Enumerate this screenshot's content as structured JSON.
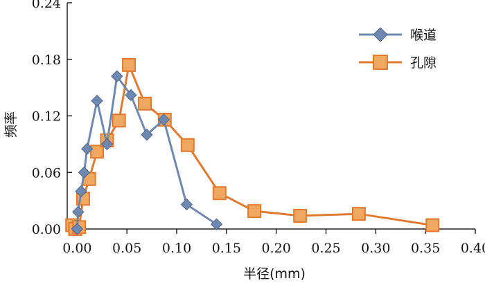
{
  "chart_data": {
    "type": "line",
    "xlabel": "半径(mm)",
    "ylabel": "频率",
    "xlim": [
      -0.01,
      0.4
    ],
    "ylim": [
      0.0,
      0.24
    ],
    "x_ticks": [
      "0.00",
      "0.05",
      "0.10",
      "0.15",
      "0.20",
      "0.25",
      "0.30",
      "0.35",
      "0.40"
    ],
    "y_ticks": [
      "0.00",
      "0.06",
      "0.12",
      "0.18",
      "0.24"
    ],
    "legend_position": "top-right",
    "series": [
      {
        "name": "喉道",
        "color": "#6f88b0",
        "marker": "diamond",
        "points": [
          [
            0.0,
            0.0
          ],
          [
            0.001,
            0.018
          ],
          [
            0.004,
            0.04
          ],
          [
            0.007,
            0.06
          ],
          [
            0.01,
            0.085
          ],
          [
            0.02,
            0.136
          ],
          [
            0.03,
            0.09
          ],
          [
            0.04,
            0.162
          ],
          [
            0.054,
            0.142
          ],
          [
            0.07,
            0.1
          ],
          [
            0.087,
            0.116
          ],
          [
            0.11,
            0.026
          ],
          [
            0.14,
            0.005
          ]
        ]
      },
      {
        "name": "孔隙",
        "color": "#e07a30",
        "fill": "#f0a860",
        "marker": "square",
        "points": [
          [
            -0.005,
            0.004
          ],
          [
            -0.002,
            0.0
          ],
          [
            0.002,
            0.002
          ],
          [
            0.006,
            0.032
          ],
          [
            0.012,
            0.053
          ],
          [
            0.02,
            0.082
          ],
          [
            0.03,
            0.094
          ],
          [
            0.042,
            0.115
          ],
          [
            0.052,
            0.174
          ],
          [
            0.068,
            0.133
          ],
          [
            0.088,
            0.116
          ],
          [
            0.111,
            0.089
          ],
          [
            0.143,
            0.038
          ],
          [
            0.178,
            0.019
          ],
          [
            0.224,
            0.014
          ],
          [
            0.283,
            0.016
          ],
          [
            0.357,
            0.004
          ]
        ]
      }
    ]
  }
}
